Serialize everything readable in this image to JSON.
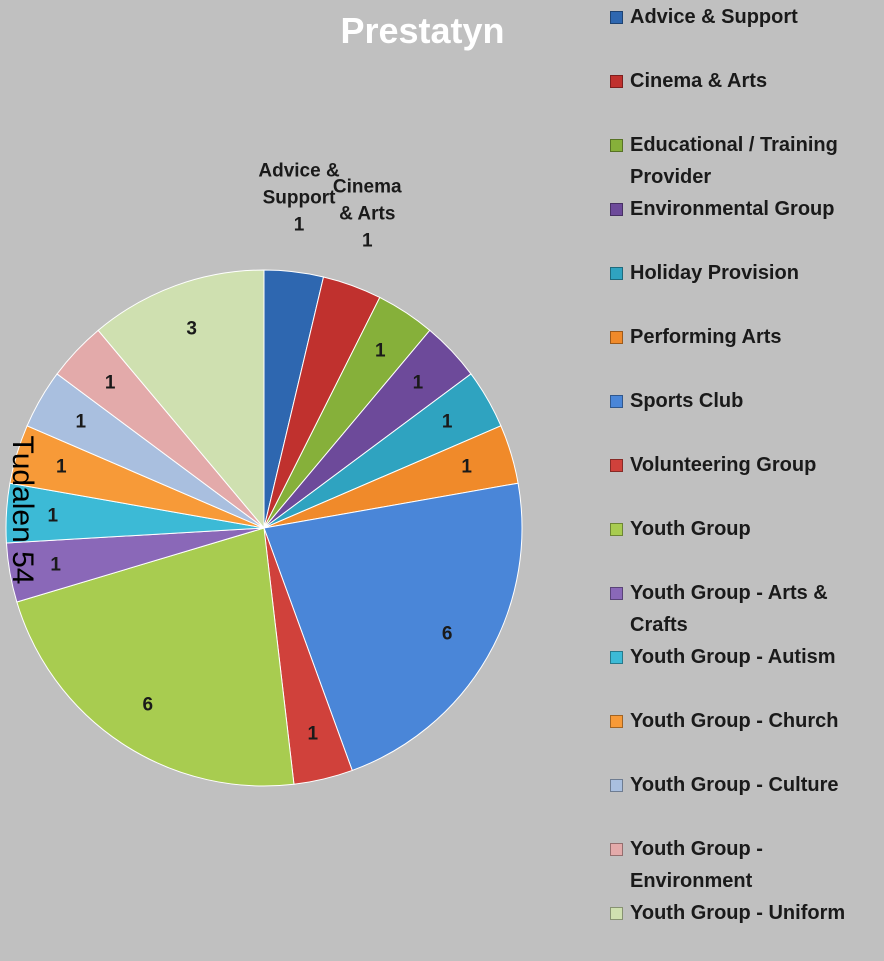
{
  "chart_data": {
    "type": "pie",
    "title": "Prestatyn",
    "categories": [
      "Advice & Support",
      "Cinema & Arts",
      "Educational / Training Provider",
      "Environmental Group",
      "Holiday Provision",
      "Performing Arts",
      "Sports Club",
      "Volunteering Group",
      "Youth Group",
      "Youth Group - Arts & Crafts",
      "Youth Group - Autism",
      "Youth Group - Church",
      "Youth Group - Culture",
      "Youth Group - Environment",
      "Youth Group - Uniform"
    ],
    "values": [
      1,
      1,
      1,
      1,
      1,
      1,
      6,
      1,
      6,
      1,
      1,
      1,
      1,
      1,
      3
    ],
    "colors": [
      "#2e67b0",
      "#c0312e",
      "#86b03a",
      "#6d4a9a",
      "#2fa3c0",
      "#f08a2a",
      "#4a86d8",
      "#d0413b",
      "#a8cc50",
      "#8a68b8",
      "#3cbad6",
      "#f79a38",
      "#a9bfdf",
      "#e3aaaa",
      "#cfe0b0"
    ],
    "legend": "right",
    "annotation": "Tudalen 54"
  }
}
